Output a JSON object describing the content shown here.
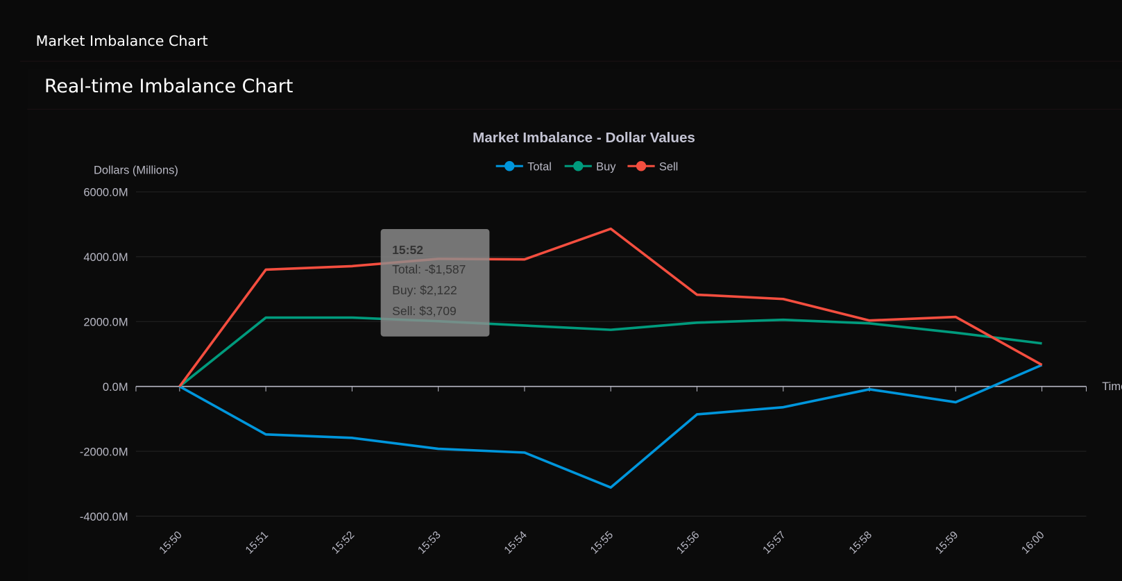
{
  "header": {
    "title": "Market Imbalance Chart"
  },
  "card": {
    "title": "Real-time Imbalance Chart"
  },
  "chart_data": {
    "type": "line",
    "title": "Market Imbalance - Dollar Values",
    "xlabel": "Time",
    "ylabel": "Dollars (Millions)",
    "ylim": [
      -4000,
      6000
    ],
    "yticks": [
      "6000.0M",
      "4000.0M",
      "2000.0M",
      "0.0M",
      "-2000.0M",
      "-4000.0M"
    ],
    "grid": true,
    "legend": "top",
    "categories": [
      "15:50",
      "15:51",
      "15:52",
      "15:53",
      "15:54",
      "15:55",
      "15:56",
      "15:57",
      "15:58",
      "15:59",
      "16:00"
    ],
    "series": [
      {
        "name": "Total",
        "color": "#0096dc",
        "values": [
          0,
          -1480,
          -1587,
          -1923,
          -2040,
          -3116,
          -862,
          -641,
          -88,
          -487,
          663
        ]
      },
      {
        "name": "Buy",
        "color": "#009b7d",
        "values": [
          0,
          2122,
          2122,
          2011,
          1878,
          1746,
          1967,
          2055,
          1945,
          1657,
          1326
        ]
      },
      {
        "name": "Sell",
        "color": "#f44e3f",
        "values": [
          0,
          3602,
          3709,
          3934,
          3918,
          4862,
          2829,
          2696,
          2033,
          2144,
          663
        ]
      }
    ],
    "tooltip": {
      "title": "15:52",
      "lines": [
        "Total: -$1,587",
        "Buy: $2,122",
        "Sell: $3,709"
      ]
    }
  }
}
